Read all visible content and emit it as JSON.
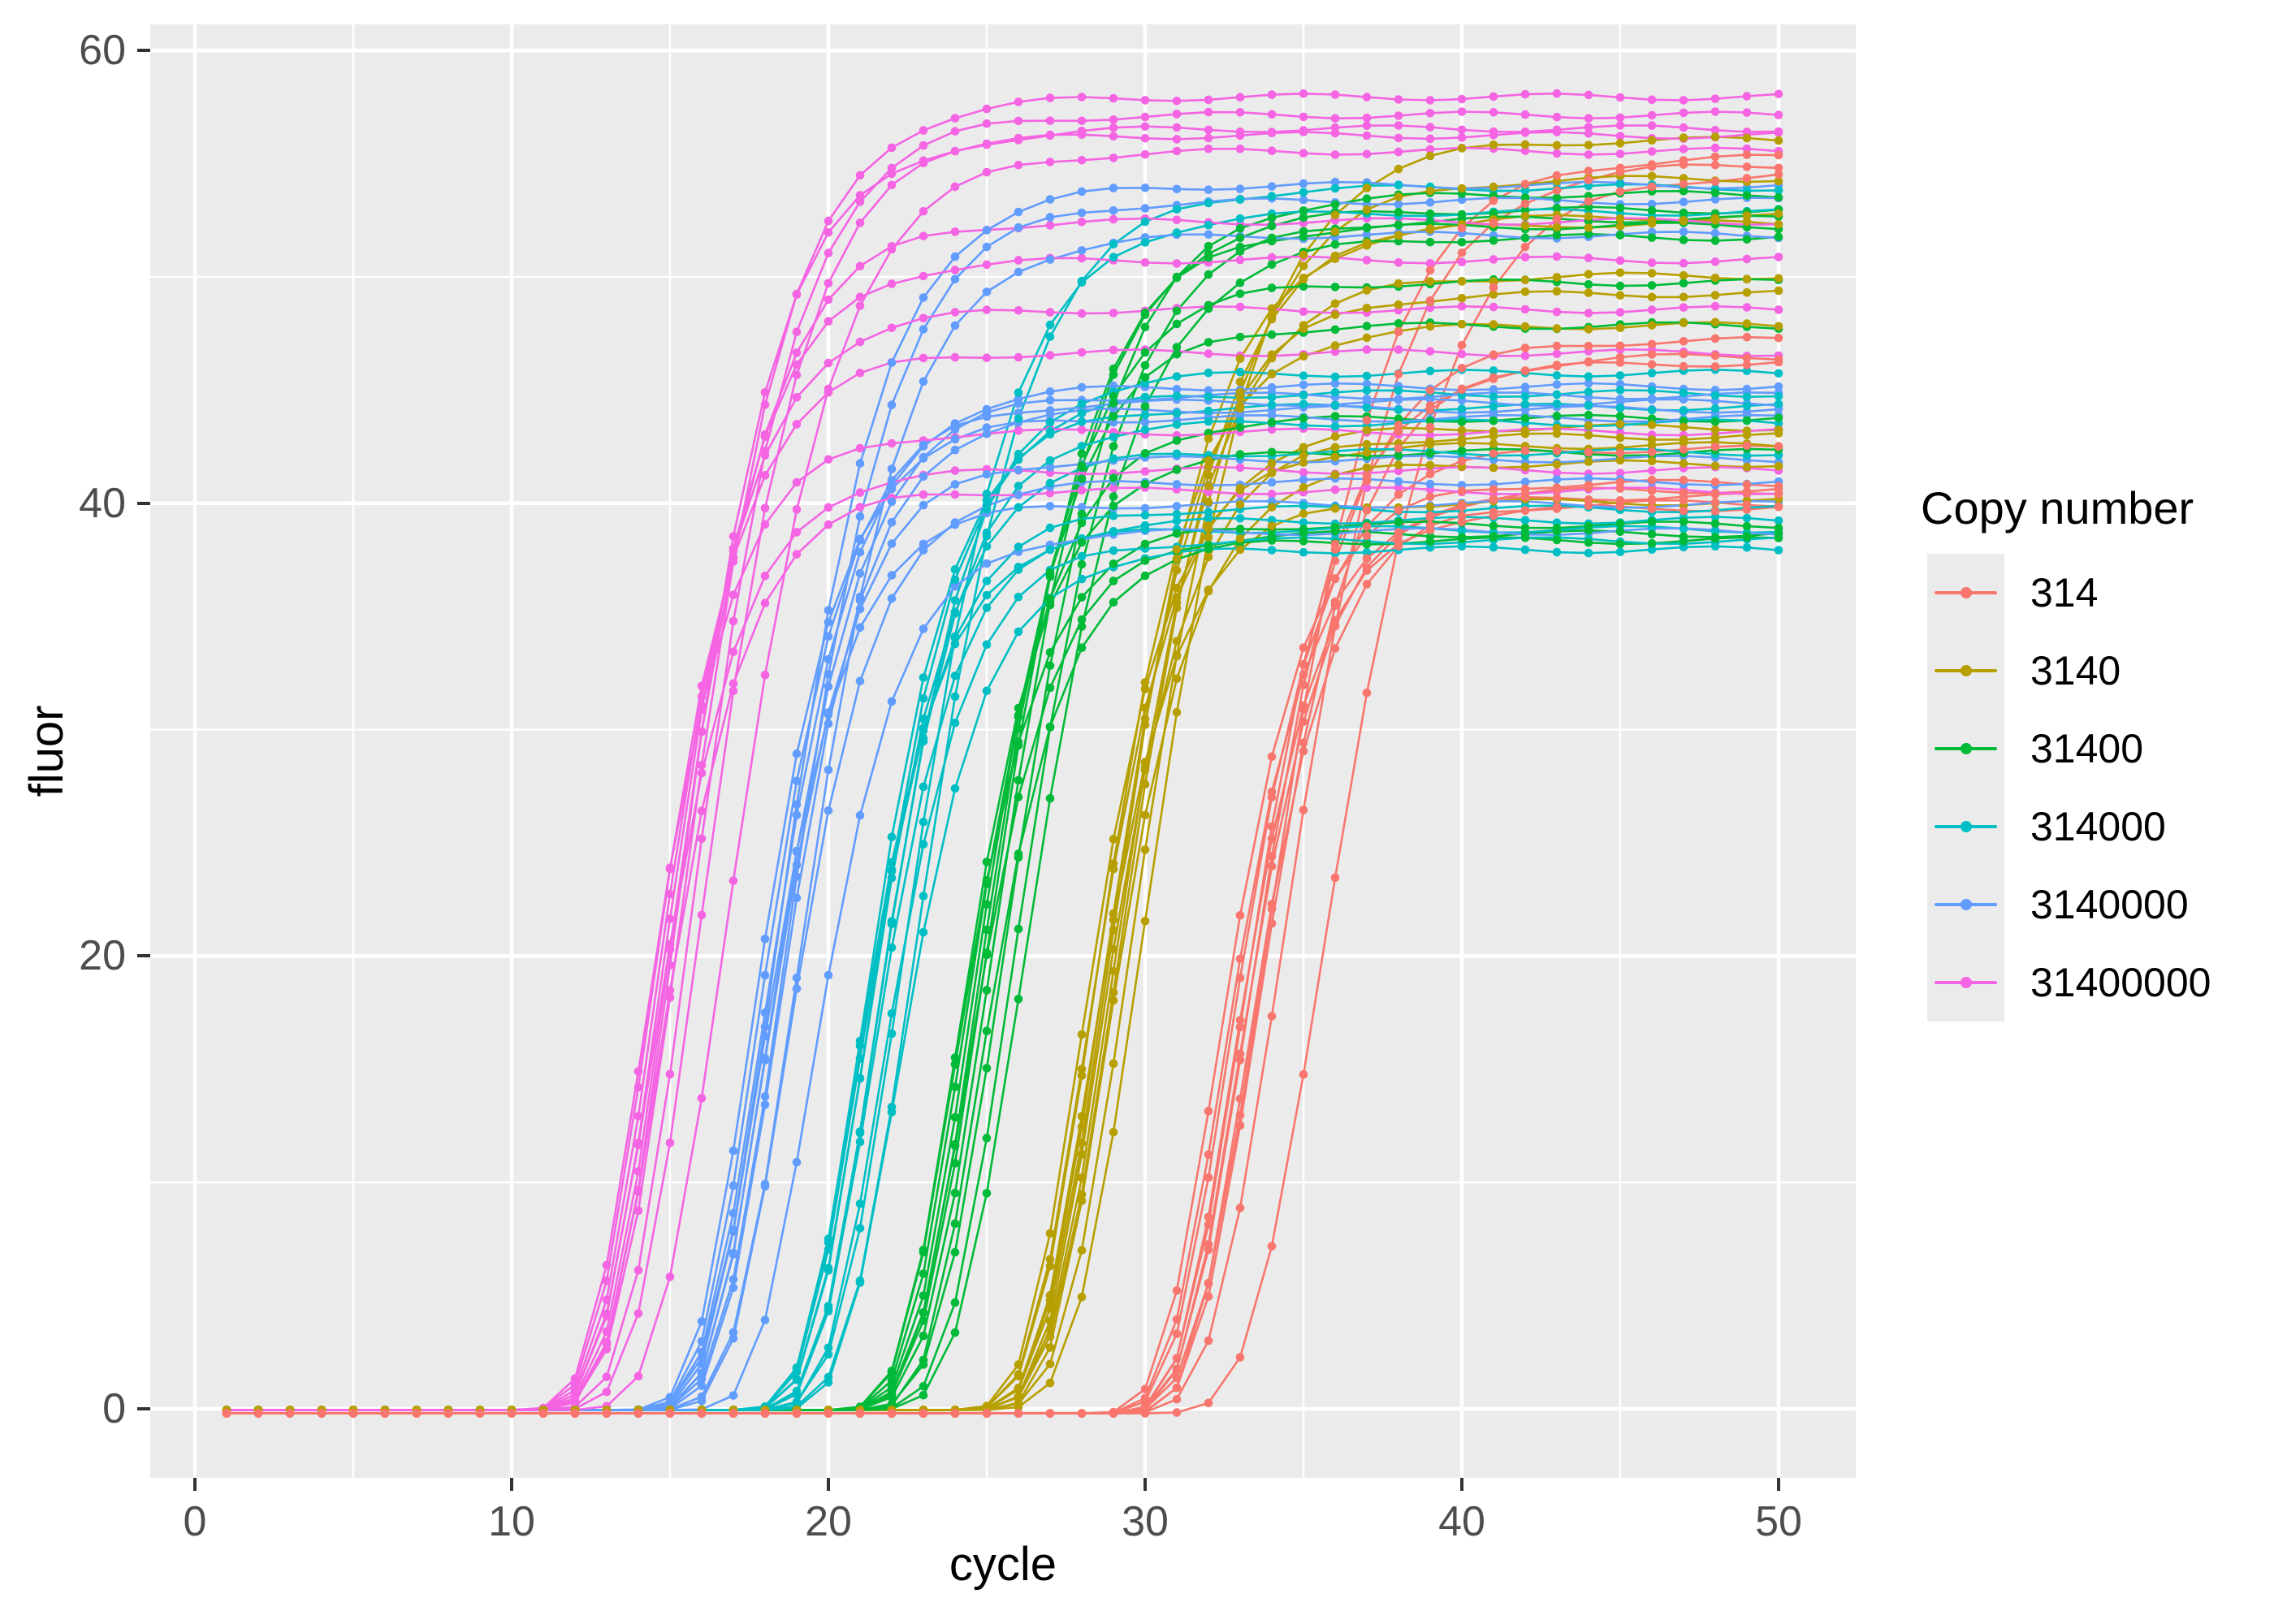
{
  "axes": {
    "x": {
      "title": "cycle",
      "major_ticks": [
        0,
        10,
        20,
        30,
        40,
        50
      ],
      "minor_ticks": [
        5,
        15,
        25,
        35,
        45
      ],
      "range_shown": [
        -1.4,
        52.5
      ],
      "tick_color": "#333333",
      "label_color": "#4D4D4D"
    },
    "y": {
      "title": "fluor",
      "major_ticks": [
        0,
        20,
        40,
        60
      ],
      "minor_ticks": [
        10,
        30,
        50
      ],
      "range_shown": [
        -2.5,
        61.7
      ],
      "tick_color": "#333333",
      "label_color": "#4D4D4D"
    }
  },
  "panel": {
    "background": "#EBEBEB",
    "grid_color": "#FFFFFF"
  },
  "legend": {
    "title": "Copy number",
    "key_background": "#EBEBEB",
    "entries": [
      {
        "label": "314",
        "color": "#F8766D"
      },
      {
        "label": "3140",
        "color": "#B79F00"
      },
      {
        "label": "31400",
        "color": "#00BA38"
      },
      {
        "label": "314000",
        "color": "#00BFC4"
      },
      {
        "label": "3140000",
        "color": "#619CFF"
      },
      {
        "label": "31400000",
        "color": "#F564E3"
      }
    ]
  },
  "chart_data": {
    "type": "line",
    "title": "",
    "xlabel": "cycle",
    "ylabel": "fluor",
    "xlim": [
      0,
      50
    ],
    "ylim": [
      0,
      60
    ],
    "grid": "on",
    "legend_position": "right",
    "x_points": "integer cycles 1 through 50 for every replicate curve",
    "model": "fluor(c) = base + plateau * exp(-exp(-(c - midpoint)/slope))  (Gompertz sigmoid per replicate)",
    "series": [
      {
        "name": "314",
        "color": "#F8766D",
        "base": -0.2,
        "replicates": [
          {
            "plateau": 55.5,
            "midpoint": 33.8,
            "slope": 2.2
          },
          {
            "plateau": 55.2,
            "midpoint": 34.3,
            "slope": 2.2
          },
          {
            "plateau": 54.8,
            "midpoint": 35.6,
            "slope": 2.3
          },
          {
            "plateau": 47.4,
            "midpoint": 33.2,
            "slope": 1.9
          },
          {
            "plateau": 46.7,
            "midpoint": 33.5,
            "slope": 1.9
          },
          {
            "plateau": 46.4,
            "midpoint": 33.0,
            "slope": 1.85
          },
          {
            "plateau": 42.6,
            "midpoint": 32.6,
            "slope": 1.75
          },
          {
            "plateau": 41.1,
            "midpoint": 32.2,
            "slope": 1.7
          },
          {
            "plateau": 40.8,
            "midpoint": 32.9,
            "slope": 1.7
          },
          {
            "plateau": 40.5,
            "midpoint": 32.4,
            "slope": 1.7
          },
          {
            "plateau": 40.2,
            "midpoint": 33.1,
            "slope": 1.65
          },
          {
            "plateau": 40.0,
            "midpoint": 32.7,
            "slope": 1.65
          }
        ]
      },
      {
        "name": "3140",
        "color": "#B79F00",
        "base": -0.05,
        "replicates": [
          {
            "plateau": 56.1,
            "midpoint": 29.9,
            "slope": 2.15
          },
          {
            "plateau": 54.4,
            "midpoint": 29.5,
            "slope": 2.1
          },
          {
            "plateau": 52.7,
            "midpoint": 29.1,
            "slope": 2.05
          },
          {
            "plateau": 52.4,
            "midpoint": 28.8,
            "slope": 2.0
          },
          {
            "plateau": 50.1,
            "midpoint": 28.9,
            "slope": 1.95
          },
          {
            "plateau": 49.3,
            "midpoint": 28.6,
            "slope": 1.9
          },
          {
            "plateau": 47.9,
            "midpoint": 28.3,
            "slope": 1.85
          },
          {
            "plateau": 43.4,
            "midpoint": 28.1,
            "slope": 1.75
          },
          {
            "plateau": 43.0,
            "midpoint": 28.5,
            "slope": 1.72
          },
          {
            "plateau": 42.6,
            "midpoint": 27.9,
            "slope": 1.7
          },
          {
            "plateau": 41.8,
            "midpoint": 28.7,
            "slope": 1.7
          },
          {
            "plateau": 40.1,
            "midpoint": 28.2,
            "slope": 1.65
          }
        ]
      },
      {
        "name": "31400",
        "color": "#00BA38",
        "base": -0.05,
        "replicates": [
          {
            "plateau": 53.7,
            "midpoint": 25.5,
            "slope": 2.1
          },
          {
            "plateau": 53.0,
            "midpoint": 25.1,
            "slope": 2.05
          },
          {
            "plateau": 52.6,
            "midpoint": 25.8,
            "slope": 2.05
          },
          {
            "plateau": 52.3,
            "midpoint": 24.9,
            "slope": 2.0
          },
          {
            "plateau": 51.8,
            "midpoint": 26.1,
            "slope": 2.1
          },
          {
            "plateau": 49.8,
            "midpoint": 24.7,
            "slope": 1.9
          },
          {
            "plateau": 47.9,
            "midpoint": 24.5,
            "slope": 1.85
          },
          {
            "plateau": 43.8,
            "midpoint": 24.2,
            "slope": 1.75
          },
          {
            "plateau": 42.3,
            "midpoint": 24.0,
            "slope": 1.72
          },
          {
            "plateau": 39.1,
            "midpoint": 23.9,
            "slope": 1.65
          },
          {
            "plateau": 38.7,
            "midpoint": 24.3,
            "slope": 1.65
          },
          {
            "plateau": 38.4,
            "midpoint": 24.7,
            "slope": 1.62
          }
        ]
      },
      {
        "name": "314000",
        "color": "#00BFC4",
        "base": -0.05,
        "replicates": [
          {
            "plateau": 54.0,
            "midpoint": 22.7,
            "slope": 2.1
          },
          {
            "plateau": 52.9,
            "midpoint": 22.3,
            "slope": 2.05
          },
          {
            "plateau": 45.8,
            "midpoint": 21.5,
            "slope": 1.8
          },
          {
            "plateau": 44.9,
            "midpoint": 21.2,
            "slope": 1.75
          },
          {
            "plateau": 44.3,
            "midpoint": 21.0,
            "slope": 1.72
          },
          {
            "plateau": 43.6,
            "midpoint": 21.4,
            "slope": 1.7
          },
          {
            "plateau": 42.3,
            "midpoint": 21.1,
            "slope": 1.7
          },
          {
            "plateau": 39.8,
            "midpoint": 20.9,
            "slope": 1.65
          },
          {
            "plateau": 39.3,
            "midpoint": 21.3,
            "slope": 1.65
          },
          {
            "plateau": 38.9,
            "midpoint": 20.8,
            "slope": 1.62
          },
          {
            "plateau": 38.4,
            "midpoint": 21.6,
            "slope": 1.65
          },
          {
            "plateau": 38.0,
            "midpoint": 22.1,
            "slope": 1.7
          }
        ]
      },
      {
        "name": "3140000",
        "color": "#619CFF",
        "base": -0.05,
        "replicates": [
          {
            "plateau": 54.1,
            "midpoint": 18.3,
            "slope": 2.0
          },
          {
            "plateau": 53.4,
            "midpoint": 18.6,
            "slope": 2.0
          },
          {
            "plateau": 51.9,
            "midpoint": 19.0,
            "slope": 2.0
          },
          {
            "plateau": 45.2,
            "midpoint": 17.9,
            "slope": 1.8
          },
          {
            "plateau": 44.8,
            "midpoint": 18.1,
            "slope": 1.75
          },
          {
            "plateau": 44.5,
            "midpoint": 17.7,
            "slope": 1.72
          },
          {
            "plateau": 44.2,
            "midpoint": 18.3,
            "slope": 1.75
          },
          {
            "plateau": 43.8,
            "midpoint": 17.5,
            "slope": 1.7
          },
          {
            "plateau": 42.0,
            "midpoint": 18.0,
            "slope": 1.7
          },
          {
            "plateau": 41.0,
            "midpoint": 18.6,
            "slope": 1.7
          },
          {
            "plateau": 40.0,
            "midpoint": 17.8,
            "slope": 1.65
          },
          {
            "plateau": 38.8,
            "midpoint": 19.4,
            "slope": 1.7
          }
        ]
      },
      {
        "name": "31400000",
        "color": "#F564E3",
        "base": -0.05,
        "replicates": [
          {
            "plateau": 58.0,
            "midpoint": 15.3,
            "slope": 2.05
          },
          {
            "plateau": 57.2,
            "midpoint": 15.6,
            "slope": 2.0
          },
          {
            "plateau": 56.6,
            "midpoint": 15.9,
            "slope": 2.0
          },
          {
            "plateau": 56.3,
            "midpoint": 15.1,
            "slope": 1.95
          },
          {
            "plateau": 55.6,
            "midpoint": 16.7,
            "slope": 2.1
          },
          {
            "plateau": 52.5,
            "midpoint": 14.9,
            "slope": 1.9
          },
          {
            "plateau": 50.8,
            "midpoint": 14.7,
            "slope": 1.85
          },
          {
            "plateau": 48.6,
            "midpoint": 14.5,
            "slope": 1.8
          },
          {
            "plateau": 46.7,
            "midpoint": 14.3,
            "slope": 1.75
          },
          {
            "plateau": 43.2,
            "midpoint": 14.1,
            "slope": 1.7
          },
          {
            "plateau": 41.5,
            "midpoint": 14.4,
            "slope": 1.7
          },
          {
            "plateau": 40.6,
            "midpoint": 14.6,
            "slope": 1.65
          }
        ]
      }
    ]
  }
}
